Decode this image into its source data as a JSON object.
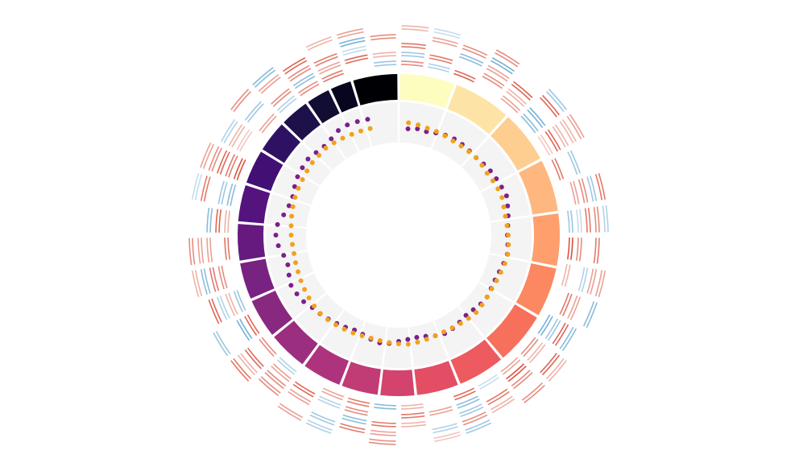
{
  "chart_data": {
    "type": "circos",
    "ideogram": {
      "values": [
        22,
        23,
        21,
        21,
        21,
        20,
        21,
        19,
        17,
        14,
        15,
        16,
        16,
        16,
        15,
        15,
        15,
        14,
        13,
        12,
        10,
        9,
        18
      ],
      "colors": [
        "#fcfdbf",
        "#fde4a6",
        "#fecd90",
        "#feb77e",
        "#fe9f6d",
        "#fb8861",
        "#f6705b",
        "#ed5a5f",
        "#e34e65",
        "#d3436e",
        "#c13b75",
        "#ad347c",
        "#9b2e7f",
        "#89287f",
        "#782281",
        "#661a80",
        "#55137d",
        "#420f75",
        "#2f1163",
        "#1e1149",
        "#120d32",
        "#08061e",
        "#000004"
      ]
    },
    "scatter": {
      "xlim": [
        0,
        360
      ],
      "ylim": [
        0,
        1
      ],
      "x": [
        5,
        10,
        15,
        20,
        25,
        30,
        35,
        40,
        45,
        50,
        55,
        60,
        65,
        70,
        75,
        80,
        85,
        90,
        95,
        100,
        105,
        110,
        115,
        120,
        125,
        130,
        135,
        140,
        145,
        150,
        155,
        160,
        165,
        170,
        175,
        180,
        185,
        190,
        195,
        200,
        205,
        210,
        215,
        220,
        225,
        230,
        235,
        240,
        245,
        250,
        255,
        260,
        265,
        270,
        275,
        280,
        285,
        290,
        295,
        300,
        305,
        310,
        315,
        320,
        325,
        330,
        335,
        340,
        345
      ],
      "series": [
        {
          "color": "#7b1f8c",
          "values": [
            0.35,
            0.38,
            0.36,
            0.4,
            0.44,
            0.46,
            0.45,
            0.43,
            0.42,
            0.45,
            0.48,
            0.5,
            0.52,
            0.55,
            0.5,
            0.46,
            0.42,
            0.4,
            0.42,
            0.44,
            0.4,
            0.36,
            0.34,
            0.35,
            0.38,
            0.36,
            0.32,
            0.3,
            0.34,
            0.38,
            0.4,
            0.36,
            0.3,
            0.28,
            0.3,
            0.34,
            0.4,
            0.42,
            0.38,
            0.32,
            0.3,
            0.34,
            0.38,
            0.42,
            0.46,
            0.5,
            0.58,
            0.62,
            0.65,
            0.6,
            0.55,
            0.6,
            0.7,
            0.75,
            0.72,
            0.6,
            0.52,
            0.5,
            0.55,
            0.6,
            0.62,
            0.64,
            0.6,
            0.58,
            0.62,
            0.7,
            0.72,
            0.7,
            0.68
          ]
        },
        {
          "color": "#f0a21c",
          "values": [
            0.5,
            0.48,
            0.45,
            0.44,
            0.42,
            0.4,
            0.4,
            0.41,
            0.42,
            0.4,
            0.38,
            0.4,
            0.42,
            0.43,
            0.4,
            0.39,
            0.4,
            0.42,
            0.44,
            0.45,
            0.43,
            0.4,
            0.38,
            0.37,
            0.38,
            0.4,
            0.42,
            0.4,
            0.38,
            0.36,
            0.35,
            0.36,
            0.38,
            0.4,
            0.42,
            0.4,
            0.38,
            0.36,
            0.35,
            0.36,
            0.38,
            0.4,
            0.42,
            0.44,
            0.45,
            0.44,
            0.42,
            0.4,
            0.38,
            0.36,
            0.35,
            0.34,
            0.35,
            0.37,
            0.38,
            0.4,
            0.42,
            0.44,
            0.45,
            0.46,
            0.48,
            0.5,
            0.5,
            0.52,
            0.5,
            0.48,
            0.46,
            0.45,
            0.44
          ]
        }
      ]
    },
    "heatmap": {
      "vlim": [
        -1,
        1
      ],
      "colors": [
        "#3a8fc4",
        "#ffffff",
        "#d6402a"
      ],
      "rows": [
        [
          0.6,
          -0.4,
          0.8,
          null,
          0.5,
          -0.6,
          0.3,
          0.7,
          null,
          -0.5,
          0.9,
          0.4,
          null,
          -0.7,
          0.6,
          0.5,
          -0.3,
          0.8,
          null,
          0.4,
          -0.6,
          0.7,
          0.5,
          null,
          -0.4,
          0.6,
          0.8,
          -0.5,
          null,
          0.7,
          0.4,
          -0.6,
          0.9,
          null,
          0.5,
          -0.4,
          0.6,
          0.7,
          null,
          -0.5
        ],
        [
          -0.5,
          0.7,
          null,
          0.6,
          0.4,
          -0.7,
          0.8,
          null,
          0.5,
          -0.3,
          0.6,
          null,
          0.7,
          -0.5,
          0.4,
          0.9,
          null,
          -0.6,
          0.5,
          0.7,
          null,
          0.6,
          -0.4,
          0.8,
          0.5,
          null,
          -0.7,
          0.4,
          0.6,
          null,
          0.8,
          -0.5,
          0.7,
          0.3,
          null,
          0.6,
          -0.6,
          0.5,
          0.8,
          0.4
        ],
        [
          0.7,
          null,
          -0.6,
          0.5,
          0.8,
          null,
          0.4,
          -0.5,
          0.6,
          0.7,
          null,
          -0.4,
          0.5,
          0.8,
          null,
          0.6,
          0.7,
          -0.5,
          null,
          0.4,
          0.7,
          -0.6,
          null,
          0.5,
          0.6,
          0.8,
          null,
          -0.4,
          0.7,
          0.5,
          -0.6,
          null,
          0.8,
          0.4,
          -0.5,
          null,
          0.6,
          0.7,
          -0.3,
          null
        ],
        [
          null,
          0.5,
          0.6,
          -0.7,
          null,
          0.8,
          0.4,
          null,
          -0.5,
          0.6,
          0.7,
          0.5,
          null,
          -0.6,
          0.8,
          null,
          0.4,
          0.6,
          -0.4,
          null,
          0.5,
          0.7,
          -0.5,
          null,
          0.6,
          0.4,
          null,
          0.8,
          -0.6,
          0.5,
          null,
          0.7,
          0.6,
          -0.4,
          null,
          0.5,
          0.8,
          null,
          -0.7,
          0.6
        ],
        [
          0.4,
          -0.3,
          null,
          0.6,
          null,
          -0.5,
          0.5,
          null,
          0.7,
          -0.4,
          null,
          0.5,
          -0.6,
          null,
          0.4,
          0.6,
          null,
          -0.5,
          0.3,
          null,
          0.6,
          null,
          -0.4,
          0.5,
          null,
          0.7,
          -0.5,
          null,
          0.4,
          0.6,
          null,
          -0.3,
          0.5,
          null,
          0.6,
          -0.6,
          null,
          0.4,
          0.5,
          null
        ]
      ]
    }
  }
}
